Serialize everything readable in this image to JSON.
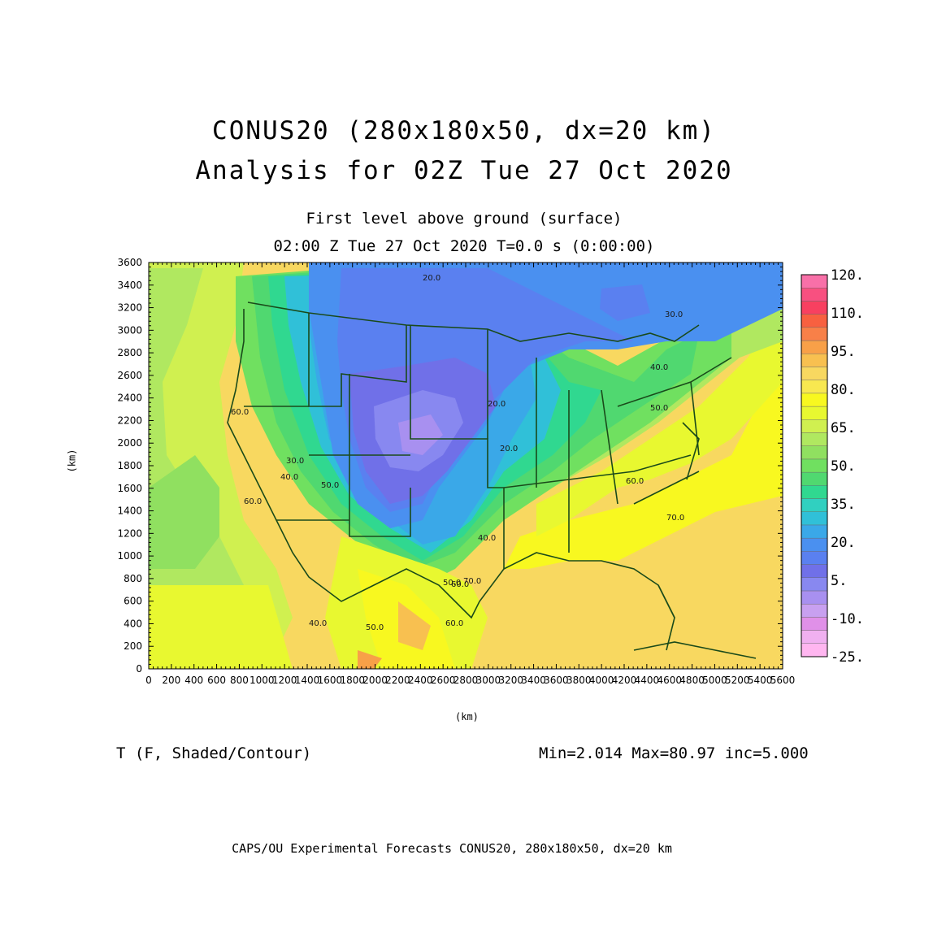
{
  "title": {
    "line1": "CONUS20 (280x180x50, dx=20 km)",
    "line2": "Analysis for 02Z Tue 27 Oct 2020"
  },
  "subtitle": {
    "line1": "First level above ground (surface)",
    "line2": "02:00 Z Tue 27 Oct 2020   T=0.0 s (0:00:00)"
  },
  "axes": {
    "x_label": "(km)",
    "y_label": "(km)",
    "x_range": [
      0,
      5600
    ],
    "y_range": [
      0,
      3600
    ],
    "x_ticks": [
      "0",
      "200",
      "400",
      "600",
      "800",
      "1000",
      "1200",
      "1400",
      "1600",
      "1800",
      "2000",
      "2200",
      "2400",
      "2600",
      "2800",
      "3000",
      "3200",
      "3400",
      "3600",
      "3800",
      "4000",
      "4200",
      "4400",
      "4600",
      "4800",
      "5000",
      "5200",
      "5400",
      "5600"
    ],
    "y_ticks": [
      "0",
      "200",
      "400",
      "600",
      "800",
      "1000",
      "1200",
      "1400",
      "1600",
      "1800",
      "2000",
      "2200",
      "2400",
      "2600",
      "2800",
      "3000",
      "3200",
      "3400",
      "3600"
    ]
  },
  "colorbar": {
    "labels": [
      "120.",
      "110.",
      "95.",
      "80.",
      "65.",
      "50.",
      "35.",
      "20.",
      "5.",
      "-10.",
      "-25."
    ],
    "colors": [
      "#ffb6f0",
      "#f0b0f0",
      "#e090e8",
      "#c8a0f0",
      "#a890f0",
      "#8888f0",
      "#7070e8",
      "#5a80f0",
      "#4a90f0",
      "#3aa8e8",
      "#30c0d8",
      "#30d0c0",
      "#30d890",
      "#50d870",
      "#70e060",
      "#90e060",
      "#b0e860",
      "#d0f050",
      "#e8f830",
      "#f8f820",
      "#f8e850",
      "#f8d860",
      "#f8c050",
      "#f8a048",
      "#f88048",
      "#f86040",
      "#f84060",
      "#f85080",
      "#f870a8"
    ]
  },
  "contour_labels": [
    "20.0",
    "30.0",
    "20.0",
    "40.0",
    "50.0",
    "60.0",
    "20.0",
    "30.0",
    "40.0",
    "50.0",
    "60.0",
    "70.0",
    "40.0",
    "60.0",
    "50.0",
    "70.0",
    "60.0",
    "40.0",
    "50.0",
    "60.0"
  ],
  "variable": "T (F, Shaded/Contour)",
  "stats": "Min=2.014 Max=80.97 inc=5.000",
  "footer": "CAPS/OU Experimental Forecasts  CONUS20, 280x180x50, dx=20 km",
  "colors": {
    "map_lines": "#1a4a1a",
    "cold": "#7070e8",
    "warm": "#f8d860"
  }
}
